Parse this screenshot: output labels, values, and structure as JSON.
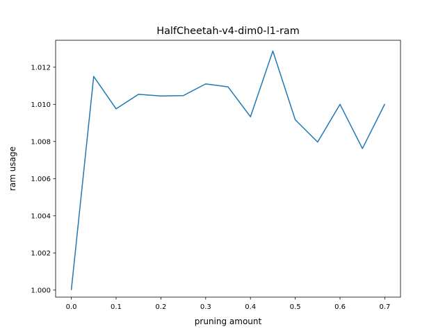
{
  "chart_data": {
    "type": "line",
    "title": "HalfCheetah-v4-dim0-l1-ram",
    "xlabel": "pruning amount",
    "ylabel": "ram usage",
    "xlim": [
      -0.035,
      0.735
    ],
    "ylim": [
      0.99962,
      1.01345
    ],
    "x_ticks": [
      0.0,
      0.1,
      0.2,
      0.3,
      0.4,
      0.5,
      0.6,
      0.7
    ],
    "x_tick_labels": [
      "0.0",
      "0.1",
      "0.2",
      "0.3",
      "0.4",
      "0.5",
      "0.6",
      "0.7"
    ],
    "y_ticks": [
      1.0,
      1.002,
      1.004,
      1.006,
      1.008,
      1.01,
      1.012
    ],
    "y_tick_labels": [
      "1.000",
      "1.002",
      "1.004",
      "1.006",
      "1.008",
      "1.010",
      "1.012"
    ],
    "grid": false,
    "series": [
      {
        "color": "#1f77b4",
        "x": [
          0.0,
          0.05,
          0.1,
          0.15,
          0.2,
          0.25,
          0.3,
          0.35,
          0.4,
          0.45,
          0.5,
          0.55,
          0.6,
          0.65,
          0.7
        ],
        "y": [
          1.0,
          1.0115,
          1.00976,
          1.01054,
          1.01045,
          1.01047,
          1.0111,
          1.01094,
          1.00933,
          1.01287,
          1.00917,
          1.00797,
          1.01,
          1.00762,
          1.01002
        ]
      }
    ]
  }
}
